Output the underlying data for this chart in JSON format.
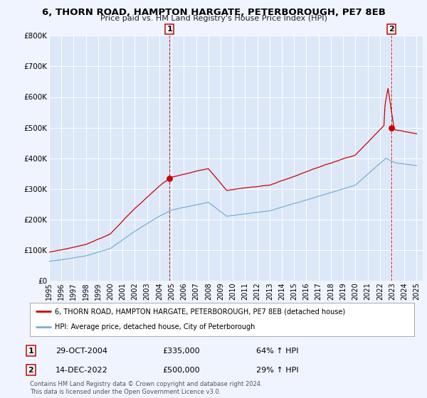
{
  "title1": "6, THORN ROAD, HAMPTON HARGATE, PETERBOROUGH, PE7 8EB",
  "title2": "Price paid vs. HM Land Registry's House Price Index (HPI)",
  "ylim": [
    0,
    800000
  ],
  "yticks": [
    0,
    100000,
    200000,
    300000,
    400000,
    500000,
    600000,
    700000,
    800000
  ],
  "ytick_labels": [
    "£0",
    "£100K",
    "£200K",
    "£300K",
    "£400K",
    "£500K",
    "£600K",
    "£700K",
    "£800K"
  ],
  "xlim_start": 1995.0,
  "xlim_end": 2025.5,
  "hpi_color": "#7bafd4",
  "price_color": "#cc0000",
  "sale1_x": 2004.83,
  "sale1_y": 335000,
  "sale2_x": 2022.96,
  "sale2_y": 500000,
  "legend_label1": "6, THORN ROAD, HAMPTON HARGATE, PETERBOROUGH, PE7 8EB (detached house)",
  "legend_label2": "HPI: Average price, detached house, City of Peterborough",
  "annotation1_date": "29-OCT-2004",
  "annotation1_price": "£335,000",
  "annotation1_hpi": "64% ↑ HPI",
  "annotation2_date": "14-DEC-2022",
  "annotation2_price": "£500,000",
  "annotation2_hpi": "29% ↑ HPI",
  "copyright_text": "Contains HM Land Registry data © Crown copyright and database right 2024.\nThis data is licensed under the Open Government Licence v3.0.",
  "background_color": "#f0f4ff",
  "plot_bg_color": "#dce8f8"
}
